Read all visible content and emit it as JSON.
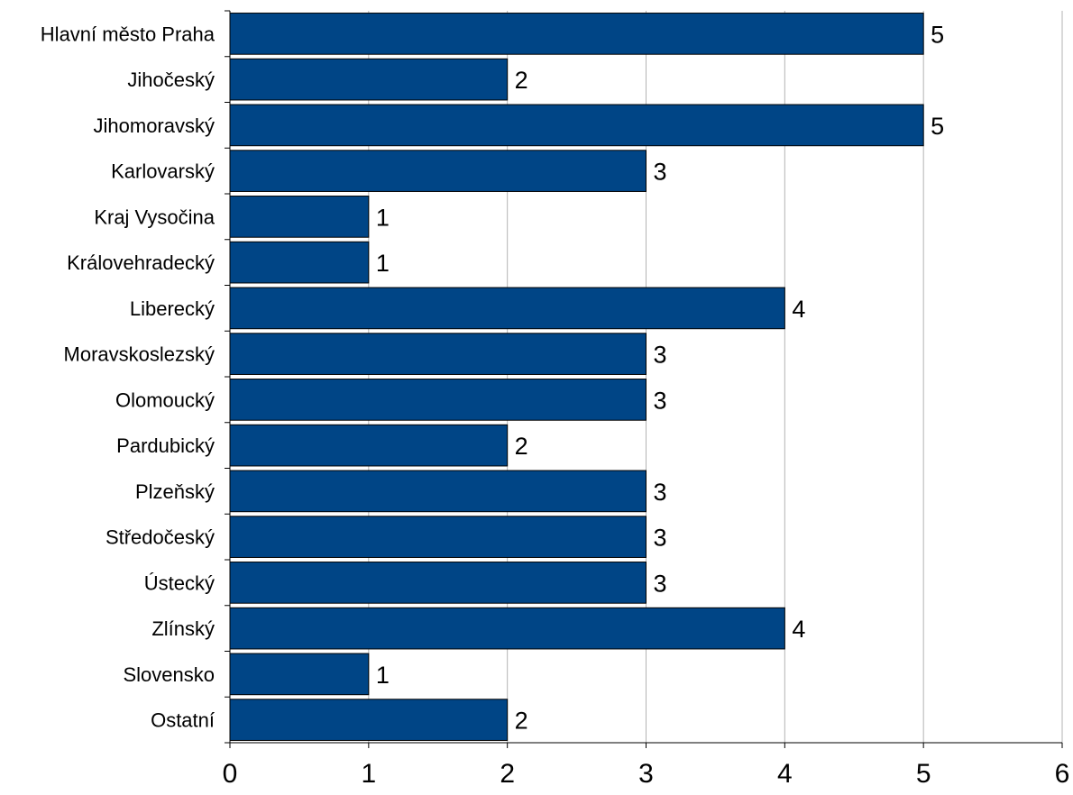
{
  "chart_data": {
    "type": "bar",
    "orientation": "horizontal",
    "categories": [
      "Hlavní město Praha",
      "Jihočeský",
      "Jihomoravský",
      "Karlovarský",
      "Kraj Vysočina",
      "Královehradecký",
      "Liberecký",
      "Moravskoslezský",
      "Olomoucký",
      "Pardubický",
      "Plzeňský ",
      "Středočeský",
      "Ústecký",
      "Zlínský ",
      "Slovensko",
      "Ostatní"
    ],
    "values": [
      5,
      2,
      5,
      3,
      1,
      1,
      4,
      3,
      3,
      2,
      3,
      3,
      3,
      4,
      1,
      2
    ],
    "xlim": [
      0,
      6
    ],
    "x_ticks": [
      "0",
      "1",
      "2",
      "3",
      "4",
      "5",
      "6"
    ],
    "title": "",
    "xlabel": "",
    "ylabel": "",
    "grid": "vertical",
    "legend": "none",
    "data_labels": true,
    "colors": {
      "bar_fill": "#004586",
      "bar_stroke": "#000000",
      "gridline": "#b3b3b3",
      "axis": "#000000"
    }
  }
}
